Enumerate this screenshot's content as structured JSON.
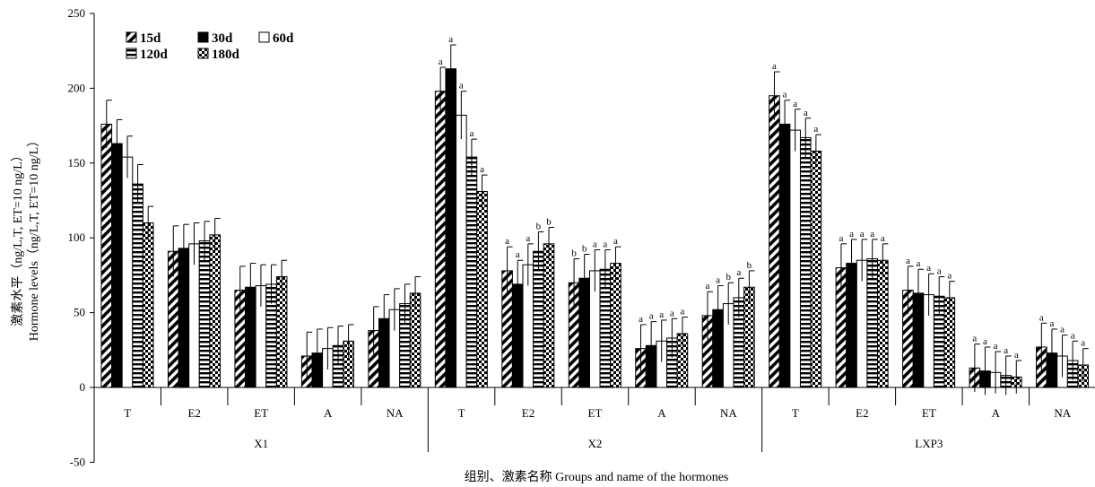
{
  "chart_data": {
    "type": "bar",
    "xlabel": "组别、激素名称 Groups and name of the hormones",
    "ylabel_cn": "激素水平（ng/L,T, ET=10 ng/L）",
    "ylabel_en": "Hormone levels（ng/L,T, ET=10 ng/L）",
    "ylim": [
      -50,
      250
    ],
    "yticks": [
      "250",
      "200",
      "150",
      "100",
      "50",
      "0",
      "-50"
    ],
    "grid": false,
    "legend_position": "top-left",
    "groups": [
      {
        "name": "X1",
        "hormones": [
          "T",
          "E2",
          "ET",
          "A",
          "NA"
        ]
      },
      {
        "name": "X2",
        "hormones": [
          "T",
          "E2",
          "ET",
          "A",
          "NA"
        ]
      },
      {
        "name": "LXP3",
        "hormones": [
          "T",
          "E2",
          "ET",
          "A",
          "NA"
        ]
      }
    ],
    "series": [
      {
        "name": "15d",
        "pattern": "diagonal",
        "values": [
          176,
          91,
          65,
          21,
          38,
          198,
          78,
          70,
          26,
          48,
          195,
          80,
          65,
          13,
          27
        ],
        "errors": [
          16,
          17,
          16,
          16,
          16,
          16,
          16,
          16,
          16,
          16,
          16,
          16,
          16,
          16,
          16
        ]
      },
      {
        "name": "30d",
        "pattern": "solid",
        "values": [
          163,
          93,
          67,
          23,
          46,
          213,
          69,
          73,
          28,
          52,
          176,
          83,
          63,
          11,
          23
        ],
        "errors": [
          16,
          16,
          16,
          16,
          16,
          16,
          16,
          16,
          16,
          16,
          16,
          16,
          16,
          16,
          16
        ]
      },
      {
        "name": "60d",
        "pattern": "open",
        "values": [
          154,
          96,
          68,
          26,
          52,
          182,
          82,
          78,
          31,
          56,
          172,
          85,
          62,
          10,
          21
        ],
        "errors": [
          14,
          14,
          14,
          14,
          14,
          16,
          14,
          14,
          14,
          14,
          14,
          14,
          14,
          14,
          14
        ]
      },
      {
        "name": "120d",
        "pattern": "horizontal",
        "values": [
          136,
          98,
          69,
          28,
          56,
          154,
          91,
          79,
          33,
          60,
          167,
          86,
          61,
          8,
          18
        ],
        "errors": [
          13,
          13,
          13,
          13,
          13,
          12,
          13,
          13,
          13,
          13,
          13,
          13,
          13,
          13,
          13
        ]
      },
      {
        "name": "180d",
        "pattern": "checker",
        "values": [
          110,
          102,
          74,
          31,
          63,
          131,
          96,
          83,
          36,
          67,
          158,
          85,
          60,
          7,
          15
        ],
        "errors": [
          11,
          11,
          11,
          11,
          11,
          11,
          11,
          11,
          11,
          11,
          11,
          11,
          11,
          11,
          11
        ]
      }
    ],
    "significance": [
      null,
      null,
      null,
      null,
      null,
      [
        "a",
        "a",
        "a",
        "a",
        "a"
      ],
      [
        "a",
        "a",
        "a",
        "b",
        "b"
      ],
      [
        "b",
        "b",
        "a",
        "a",
        "a"
      ],
      [
        "a",
        "a",
        "a",
        "a",
        "a"
      ],
      [
        "a",
        "a",
        "b",
        "a",
        "b"
      ],
      [
        "a",
        "a",
        "a",
        "a",
        "a"
      ],
      [
        "a",
        "a",
        "a",
        "a",
        "a"
      ],
      [
        "a",
        "a",
        "a",
        "a",
        "a"
      ],
      [
        "a",
        "a",
        "a",
        "a",
        "a"
      ],
      [
        "a",
        "a",
        "a",
        "a",
        "a"
      ]
    ]
  }
}
